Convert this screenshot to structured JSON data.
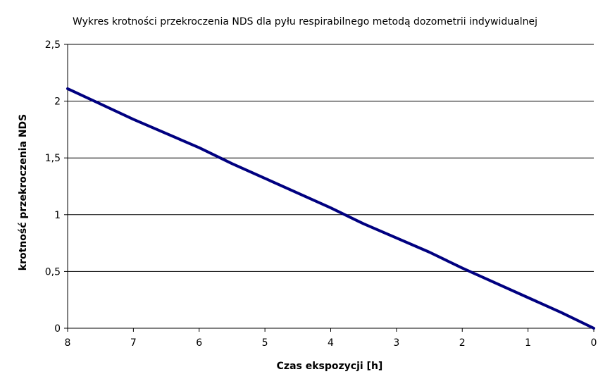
{
  "chart_data": {
    "type": "line",
    "title": "Wykres krotności przekroczenia NDS dla pyłu respirabilnego metodą dozometrii indywidualnej",
    "xlabel": "Czas ekspozycji [h]",
    "ylabel": "krotność przekroczenia NDS",
    "xlim": [
      8,
      0
    ],
    "ylim": [
      0,
      2.5
    ],
    "x_ticks": [
      "8",
      "7",
      "6",
      "5",
      "4",
      "3",
      "2",
      "1",
      "0"
    ],
    "y_ticks": [
      "0",
      "0,5",
      "1",
      "1,5",
      "2",
      "2,5"
    ],
    "grid": "horizontal",
    "series": [
      {
        "color": "#000080",
        "x": [
          8,
          7,
          6,
          5.5,
          5,
          4,
          3.5,
          2.5,
          2,
          1,
          0.5,
          0
        ],
        "y": [
          2.11,
          1.84,
          1.59,
          1.45,
          1.32,
          1.06,
          0.92,
          0.67,
          0.53,
          0.27,
          0.14,
          0
        ]
      }
    ]
  }
}
